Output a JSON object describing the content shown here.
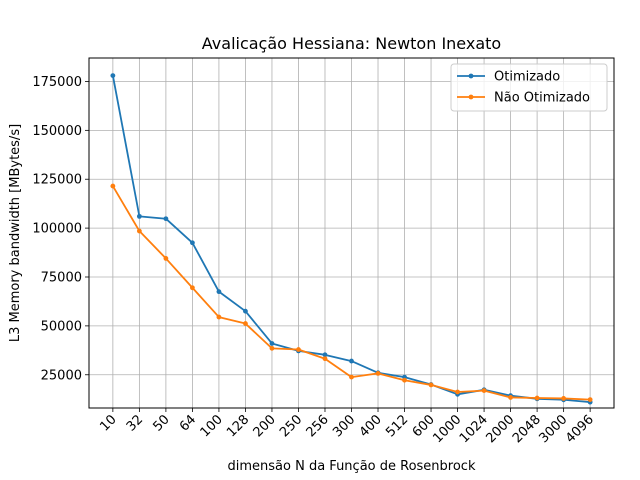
{
  "chart_data": {
    "type": "line",
    "title": "Avalicação Hessiana:  Newton Inexato",
    "xlabel": "dimensão N da Função de Rosenbrock",
    "ylabel": "L3 Memory bandwidth [MBytes/s]",
    "categories": [
      "10",
      "32",
      "50",
      "64",
      "100",
      "128",
      "200",
      "250",
      "256",
      "300",
      "400",
      "512",
      "600",
      "1000",
      "1024",
      "2000",
      "2048",
      "3000",
      "4096"
    ],
    "ylim": [
      8000,
      187000
    ],
    "yticks": [
      25000,
      50000,
      75000,
      100000,
      125000,
      150000,
      175000
    ],
    "yticklabels": [
      "25000",
      "50000",
      "75000",
      "100000",
      "125000",
      "150000",
      "175000"
    ],
    "grid": true,
    "legend_position": "top-right",
    "series": [
      {
        "name": "Otimizado",
        "color": "#1f77b4",
        "marker": "circle",
        "values": [
          178000,
          106000,
          104800,
          92500,
          67500,
          57500,
          41000,
          37200,
          35200,
          32000,
          26000,
          23800,
          20000,
          15000,
          17300,
          14300,
          12700,
          12200,
          11000
        ]
      },
      {
        "name": " Não Otimizado",
        "color": "#ff7f0e",
        "marker": "circle",
        "values": [
          121500,
          98500,
          84500,
          69500,
          54500,
          51200,
          38500,
          37900,
          33200,
          23800,
          25700,
          22200,
          19800,
          16200,
          16900,
          13400,
          13100,
          12900,
          12300
        ]
      }
    ]
  }
}
